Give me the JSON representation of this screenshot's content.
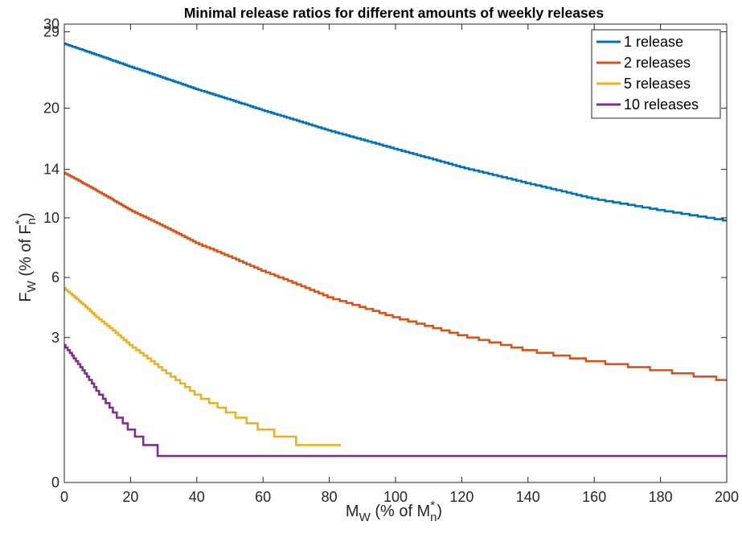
{
  "chart_data": {
    "type": "line",
    "title": "Minimal release ratios for different amounts of weekly releases",
    "xlabel": {
      "main": "M",
      "sub": "W",
      "mid": " (% of M",
      "supsub_sup": "*",
      "supsub_sub": "n",
      "tail": ")"
    },
    "ylabel": {
      "main": "F",
      "sub": "W",
      "mid": " (% of F",
      "supsub_sup": "*",
      "supsub_sub": "n",
      "tail": ")"
    },
    "xlim": [
      0,
      200
    ],
    "ylim": [
      0,
      30
    ],
    "y_scale": "sqrt",
    "x_ticks": [
      0,
      20,
      40,
      60,
      80,
      100,
      120,
      140,
      160,
      180,
      200
    ],
    "x_tick_labels": [
      "0",
      "20",
      "40",
      "60",
      "80",
      "100",
      "120",
      "140",
      "160",
      "180",
      "200"
    ],
    "y_ticks": [
      0,
      3,
      6,
      10,
      14,
      20,
      29,
      30
    ],
    "y_tick_labels": [
      "0",
      "3",
      "6",
      "10",
      "14",
      "20",
      "29",
      "30"
    ],
    "grid": false,
    "legend_position": "top-right",
    "series": [
      {
        "name": "1 release",
        "color": "#0072BD",
        "step": 0.1,
        "floor": 0,
        "x": [
          0,
          20,
          40,
          60,
          80,
          100,
          120,
          140,
          160,
          180,
          200
        ],
        "y": [
          27.5,
          24.7,
          22.1,
          19.8,
          17.7,
          15.9,
          14.2,
          12.8,
          11.5,
          10.6,
          9.8
        ]
      },
      {
        "name": "2 releases",
        "color": "#D95319",
        "step": 0.1,
        "floor": 0,
        "x": [
          0,
          20,
          40,
          60,
          80,
          100,
          120,
          140,
          160,
          180,
          200
        ],
        "y": [
          13.7,
          10.6,
          8.2,
          6.4,
          4.9,
          3.9,
          3.1,
          2.5,
          2.1,
          1.8,
          1.5
        ]
      },
      {
        "name": "5 releases",
        "color": "#EDB120",
        "step": 0.1,
        "floor": 0.2,
        "x": [
          0,
          10,
          20,
          30,
          40,
          50,
          60,
          70,
          80,
          83.5
        ],
        "y": [
          5.4,
          3.9,
          2.7,
          1.8,
          1.1,
          0.7,
          0.4,
          0.25,
          0.2,
          0.2
        ]
      },
      {
        "name": "10 releases",
        "color": "#7E2F8E",
        "step": 0.1,
        "floor": 0.1,
        "x": [
          0,
          5,
          10,
          15,
          20,
          25,
          30,
          32,
          40,
          100,
          200
        ],
        "y": [
          2.7,
          1.9,
          1.2,
          0.7,
          0.4,
          0.2,
          0.12,
          0.1,
          0.1,
          0.1,
          0.1
        ]
      }
    ]
  }
}
